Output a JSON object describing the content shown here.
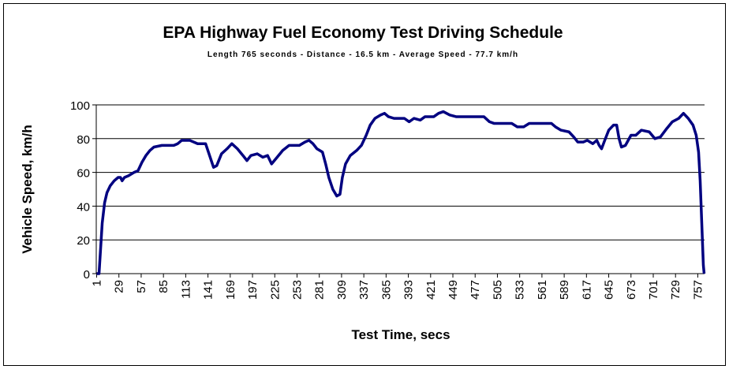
{
  "chart_data": {
    "type": "line",
    "title": "EPA Highway Fuel Economy Test Driving Schedule",
    "subtitle": "Length 765 seconds - Distance - 16.5 km - Average Speed - 77.7 km/h",
    "y_label": "Vehicle Speed, km/h",
    "x_label": "Test Time, secs",
    "xlim": [
      0.5,
      765.5
    ],
    "xticks": [
      1,
      29,
      57,
      85,
      113,
      141,
      169,
      197,
      225,
      253,
      281,
      309,
      337,
      365,
      393,
      421,
      449,
      477,
      505,
      533,
      561,
      589,
      617,
      645,
      673,
      701,
      729,
      757
    ],
    "ylim": [
      0,
      100
    ],
    "yticks": [
      0,
      20,
      40,
      60,
      80,
      100
    ],
    "grid": true,
    "series": [
      {
        "color": "#000080",
        "x": [
          1,
          4,
          6,
          8,
          11,
          14,
          18,
          23,
          28,
          31,
          33,
          36,
          41,
          48,
          53,
          58,
          63,
          68,
          73,
          83,
          98,
          103,
          108,
          118,
          128,
          138,
          143,
          148,
          152,
          158,
          165,
          171,
          178,
          185,
          190,
          195,
          203,
          210,
          216,
          221,
          228,
          235,
          243,
          256,
          263,
          268,
          273,
          278,
          285,
          289,
          293,
          298,
          303,
          307,
          310,
          314,
          320,
          328,
          334,
          340,
          345,
          351,
          358,
          363,
          368,
          375,
          388,
          394,
          400,
          408,
          414,
          425,
          431,
          437,
          445,
          453,
          488,
          495,
          501,
          523,
          530,
          538,
          545,
          573,
          578,
          585,
          595,
          601,
          606,
          613,
          618,
          625,
          630,
          633,
          636,
          640,
          645,
          651,
          655,
          658,
          661,
          666,
          673,
          679,
          686,
          696,
          703,
          710,
          718,
          725,
          733,
          739,
          745,
          751,
          755,
          758,
          760,
          762,
          764,
          765
        ],
        "values": [
          0,
          0,
          15,
          30,
          42,
          48,
          52,
          55,
          57,
          57,
          55,
          57,
          58,
          60,
          61,
          66,
          70,
          73,
          75,
          76,
          76,
          77,
          79,
          79,
          77,
          77,
          70,
          63,
          64,
          71,
          74,
          77,
          74,
          70,
          67,
          70,
          71,
          69,
          70,
          65,
          69,
          73,
          76,
          76,
          78,
          79,
          77,
          74,
          72,
          65,
          57,
          50,
          46,
          47,
          57,
          65,
          70,
          73,
          76,
          82,
          88,
          92,
          94,
          95,
          93,
          92,
          92,
          90,
          92,
          91,
          93,
          93,
          95,
          96,
          94,
          93,
          93,
          90,
          89,
          89,
          87,
          87,
          89,
          89,
          87,
          85,
          84,
          81,
          78,
          78,
          79,
          77,
          79,
          76,
          74,
          79,
          85,
          88,
          88,
          80,
          75,
          76,
          82,
          82,
          85,
          84,
          80,
          81,
          86,
          90,
          92,
          95,
          92,
          88,
          82,
          72,
          55,
          30,
          5,
          0
        ]
      }
    ]
  }
}
